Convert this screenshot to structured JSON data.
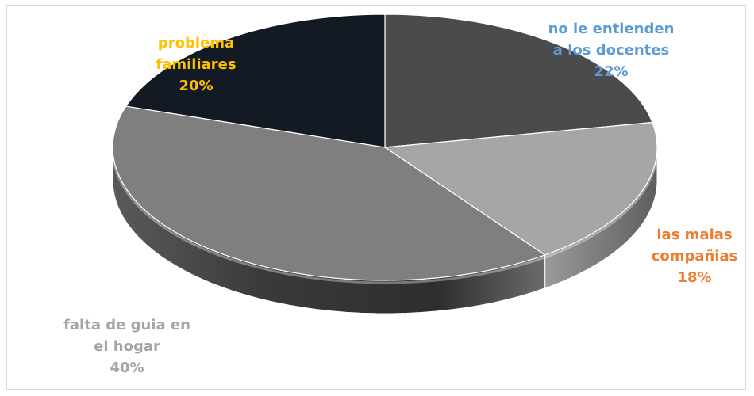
{
  "chart_data": {
    "type": "pie",
    "style": "3d",
    "title": "",
    "slices": [
      {
        "label_lines": [
          "no le entienden",
          "a los docentes"
        ],
        "percent_text": "22%",
        "value": 22,
        "color": "#4b4b4b",
        "label_color": "#5b9bd5"
      },
      {
        "label_lines": [
          "las malas",
          "compañias"
        ],
        "percent_text": "18%",
        "value": 18,
        "color": "#a6a6a6",
        "label_color": "#ed7d31"
      },
      {
        "label_lines": [
          "falta de guia en",
          "el hogar"
        ],
        "percent_text": "40%",
        "value": 40,
        "color": "#7f7f7f",
        "label_color": "#a5a5a5"
      },
      {
        "label_lines": [
          "problema",
          "familiares"
        ],
        "percent_text": "20%",
        "value": 20,
        "color": "#141a23",
        "label_color": "#ffc000"
      }
    ]
  }
}
